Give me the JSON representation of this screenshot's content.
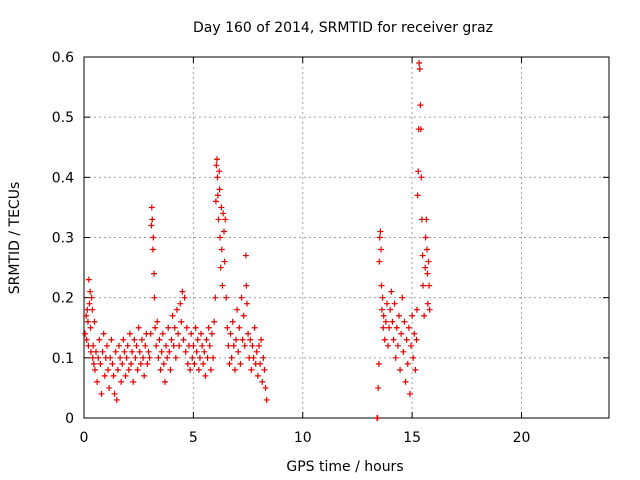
{
  "chart_data": {
    "type": "scatter",
    "title": "Day 160 of 2014, SRMTID for receiver graz",
    "xlabel": "GPS time / hours",
    "ylabel": "SRMTID / TECUs",
    "xlim": [
      0,
      24
    ],
    "ylim": [
      0,
      0.6
    ],
    "xticks": [
      0,
      5,
      10,
      15,
      20
    ],
    "xtick_labels": [
      "0",
      "5",
      "10",
      "15",
      "20"
    ],
    "yticks": [
      0,
      0.1,
      0.2,
      0.3,
      0.4,
      0.5,
      0.6
    ],
    "ytick_labels": [
      "0",
      "0.1",
      "0.2",
      "0.3",
      "0.4",
      "0.5",
      "0.6"
    ],
    "grid": true,
    "marker": "+",
    "color": "#e00000",
    "series": [
      {
        "name": "SRMTID",
        "points": [
          [
            0.05,
            0.14
          ],
          [
            0.1,
            0.17
          ],
          [
            0.12,
            0.13
          ],
          [
            0.15,
            0.18
          ],
          [
            0.18,
            0.16
          ],
          [
            0.2,
            0.12
          ],
          [
            0.22,
            0.23
          ],
          [
            0.25,
            0.19
          ],
          [
            0.28,
            0.21
          ],
          [
            0.3,
            0.15
          ],
          [
            0.32,
            0.11
          ],
          [
            0.35,
            0.2
          ],
          [
            0.38,
            0.18
          ],
          [
            0.4,
            0.1
          ],
          [
            0.42,
            0.12
          ],
          [
            0.45,
            0.09
          ],
          [
            0.48,
            0.16
          ],
          [
            0.5,
            0.08
          ],
          [
            0.55,
            0.11
          ],
          [
            0.6,
            0.06
          ],
          [
            0.65,
            0.1
          ],
          [
            0.7,
            0.13
          ],
          [
            0.75,
            0.09
          ],
          [
            0.8,
            0.04
          ],
          [
            0.85,
            0.11
          ],
          [
            0.9,
            0.14
          ],
          [
            0.95,
            0.07
          ],
          [
            1.0,
            0.1
          ],
          [
            1.05,
            0.12
          ],
          [
            1.1,
            0.08
          ],
          [
            1.15,
            0.05
          ],
          [
            1.2,
            0.1
          ],
          [
            1.25,
            0.13
          ],
          [
            1.3,
            0.09
          ],
          [
            1.35,
            0.07
          ],
          [
            1.4,
            0.04
          ],
          [
            1.45,
            0.11
          ],
          [
            1.5,
            0.03
          ],
          [
            1.55,
            0.08
          ],
          [
            1.6,
            0.12
          ],
          [
            1.65,
            0.1
          ],
          [
            1.7,
            0.06
          ],
          [
            1.75,
            0.09
          ],
          [
            1.8,
            0.13
          ],
          [
            1.85,
            0.11
          ],
          [
            1.9,
            0.07
          ],
          [
            1.95,
            0.1
          ],
          [
            2.0,
            0.12
          ],
          [
            2.05,
            0.08
          ],
          [
            2.1,
            0.14
          ],
          [
            2.15,
            0.09
          ],
          [
            2.2,
            0.11
          ],
          [
            2.25,
            0.06
          ],
          [
            2.3,
            0.13
          ],
          [
            2.35,
            0.1
          ],
          [
            2.4,
            0.12
          ],
          [
            2.45,
            0.08
          ],
          [
            2.5,
            0.15
          ],
          [
            2.55,
            0.11
          ],
          [
            2.6,
            0.09
          ],
          [
            2.65,
            0.13
          ],
          [
            2.7,
            0.1
          ],
          [
            2.75,
            0.07
          ],
          [
            2.8,
            0.12
          ],
          [
            2.85,
            0.14
          ],
          [
            2.9,
            0.09
          ],
          [
            2.95,
            0.11
          ],
          [
            3.0,
            0.1
          ],
          [
            3.05,
            0.14
          ],
          [
            3.08,
            0.32
          ],
          [
            3.1,
            0.35
          ],
          [
            3.12,
            0.33
          ],
          [
            3.15,
            0.28
          ],
          [
            3.17,
            0.3
          ],
          [
            3.2,
            0.24
          ],
          [
            3.22,
            0.2
          ],
          [
            3.25,
            0.15
          ],
          [
            3.3,
            0.12
          ],
          [
            3.35,
            0.16
          ],
          [
            3.4,
            0.1
          ],
          [
            3.45,
            0.13
          ],
          [
            3.5,
            0.08
          ],
          [
            3.55,
            0.11
          ],
          [
            3.6,
            0.14
          ],
          [
            3.65,
            0.09
          ],
          [
            3.7,
            0.06
          ],
          [
            3.75,
            0.12
          ],
          [
            3.8,
            0.1
          ],
          [
            3.85,
            0.15
          ],
          [
            3.9,
            0.11
          ],
          [
            3.95,
            0.08
          ],
          [
            4.0,
            0.13
          ],
          [
            4.05,
            0.17
          ],
          [
            4.1,
            0.12
          ],
          [
            4.15,
            0.15
          ],
          [
            4.2,
            0.1
          ],
          [
            4.25,
            0.18
          ],
          [
            4.3,
            0.14
          ],
          [
            4.35,
            0.12
          ],
          [
            4.4,
            0.19
          ],
          [
            4.45,
            0.16
          ],
          [
            4.5,
            0.21
          ],
          [
            4.55,
            0.13
          ],
          [
            4.6,
            0.2
          ],
          [
            4.65,
            0.11
          ],
          [
            4.7,
            0.15
          ],
          [
            4.75,
            0.09
          ],
          [
            4.8,
            0.12
          ],
          [
            4.85,
            0.08
          ],
          [
            4.9,
            0.14
          ],
          [
            4.95,
            0.1
          ],
          [
            5.0,
            0.12
          ],
          [
            5.05,
            0.09
          ],
          [
            5.1,
            0.15
          ],
          [
            5.15,
            0.11
          ],
          [
            5.2,
            0.13
          ],
          [
            5.25,
            0.08
          ],
          [
            5.3,
            0.1
          ],
          [
            5.35,
            0.14
          ],
          [
            5.4,
            0.12
          ],
          [
            5.45,
            0.09
          ],
          [
            5.5,
            0.11
          ],
          [
            5.55,
            0.07
          ],
          [
            5.6,
            0.13
          ],
          [
            5.65,
            0.1
          ],
          [
            5.7,
            0.15
          ],
          [
            5.75,
            0.12
          ],
          [
            5.8,
            0.08
          ],
          [
            5.85,
            0.14
          ],
          [
            5.9,
            0.1
          ],
          [
            5.95,
            0.16
          ],
          [
            6.0,
            0.2
          ],
          [
            6.03,
            0.36
          ],
          [
            6.05,
            0.42
          ],
          [
            6.08,
            0.43
          ],
          [
            6.1,
            0.4
          ],
          [
            6.12,
            0.37
          ],
          [
            6.15,
            0.33
          ],
          [
            6.18,
            0.41
          ],
          [
            6.2,
            0.38
          ],
          [
            6.22,
            0.3
          ],
          [
            6.25,
            0.25
          ],
          [
            6.28,
            0.35
          ],
          [
            6.3,
            0.28
          ],
          [
            6.33,
            0.22
          ],
          [
            6.36,
            0.34
          ],
          [
            6.4,
            0.31
          ],
          [
            6.43,
            0.26
          ],
          [
            6.46,
            0.33
          ],
          [
            6.5,
            0.2
          ],
          [
            6.55,
            0.15
          ],
          [
            6.6,
            0.12
          ],
          [
            6.65,
            0.09
          ],
          [
            6.7,
            0.14
          ],
          [
            6.75,
            0.1
          ],
          [
            6.8,
            0.16
          ],
          [
            6.85,
            0.12
          ],
          [
            6.9,
            0.08
          ],
          [
            6.95,
            0.13
          ],
          [
            7.0,
            0.18
          ],
          [
            7.05,
            0.11
          ],
          [
            7.1,
            0.15
          ],
          [
            7.15,
            0.09
          ],
          [
            7.2,
            0.2
          ],
          [
            7.25,
            0.13
          ],
          [
            7.3,
            0.17
          ],
          [
            7.35,
            0.12
          ],
          [
            7.4,
            0.27
          ],
          [
            7.42,
            0.22
          ],
          [
            7.45,
            0.19
          ],
          [
            7.5,
            0.14
          ],
          [
            7.55,
            0.1
          ],
          [
            7.6,
            0.13
          ],
          [
            7.65,
            0.08
          ],
          [
            7.7,
            0.12
          ],
          [
            7.75,
            0.1
          ],
          [
            7.8,
            0.15
          ],
          [
            7.85,
            0.09
          ],
          [
            7.9,
            0.11
          ],
          [
            7.95,
            0.07
          ],
          [
            8.0,
            0.12
          ],
          [
            8.05,
            0.09
          ],
          [
            8.1,
            0.13
          ],
          [
            8.15,
            0.06
          ],
          [
            8.2,
            0.1
          ],
          [
            8.25,
            0.08
          ],
          [
            8.3,
            0.05
          ],
          [
            8.35,
            0.03
          ],
          [
            13.4,
            0.0
          ],
          [
            13.42,
            0.0
          ],
          [
            13.45,
            0.05
          ],
          [
            13.48,
            0.09
          ],
          [
            13.5,
            0.26
          ],
          [
            13.52,
            0.3
          ],
          [
            13.55,
            0.31
          ],
          [
            13.58,
            0.28
          ],
          [
            13.6,
            0.22
          ],
          [
            13.62,
            0.18
          ],
          [
            13.65,
            0.2
          ],
          [
            13.68,
            0.15
          ],
          [
            13.7,
            0.17
          ],
          [
            13.75,
            0.13
          ],
          [
            13.8,
            0.16
          ],
          [
            13.85,
            0.19
          ],
          [
            13.9,
            0.12
          ],
          [
            13.95,
            0.15
          ],
          [
            14.0,
            0.18
          ],
          [
            14.05,
            0.21
          ],
          [
            14.1,
            0.16
          ],
          [
            14.15,
            0.13
          ],
          [
            14.2,
            0.19
          ],
          [
            14.25,
            0.1
          ],
          [
            14.3,
            0.15
          ],
          [
            14.35,
            0.12
          ],
          [
            14.4,
            0.17
          ],
          [
            14.45,
            0.08
          ],
          [
            14.5,
            0.14
          ],
          [
            14.55,
            0.2
          ],
          [
            14.6,
            0.11
          ],
          [
            14.65,
            0.16
          ],
          [
            14.7,
            0.06
          ],
          [
            14.75,
            0.13
          ],
          [
            14.8,
            0.09
          ],
          [
            14.85,
            0.15
          ],
          [
            14.9,
            0.04
          ],
          [
            14.95,
            0.12
          ],
          [
            15.0,
            0.17
          ],
          [
            15.05,
            0.1
          ],
          [
            15.1,
            0.14
          ],
          [
            15.15,
            0.08
          ],
          [
            15.2,
            0.13
          ],
          [
            15.22,
            0.18
          ],
          [
            15.25,
            0.37
          ],
          [
            15.28,
            0.41
          ],
          [
            15.3,
            0.48
          ],
          [
            15.32,
            0.59
          ],
          [
            15.35,
            0.58
          ],
          [
            15.38,
            0.52
          ],
          [
            15.4,
            0.48
          ],
          [
            15.42,
            0.4
          ],
          [
            15.45,
            0.33
          ],
          [
            15.48,
            0.27
          ],
          [
            15.5,
            0.22
          ],
          [
            15.55,
            0.17
          ],
          [
            15.6,
            0.25
          ],
          [
            15.62,
            0.3
          ],
          [
            15.65,
            0.33
          ],
          [
            15.68,
            0.28
          ],
          [
            15.7,
            0.24
          ],
          [
            15.72,
            0.19
          ],
          [
            15.75,
            0.26
          ],
          [
            15.78,
            0.22
          ],
          [
            15.8,
            0.18
          ]
        ]
      }
    ]
  }
}
